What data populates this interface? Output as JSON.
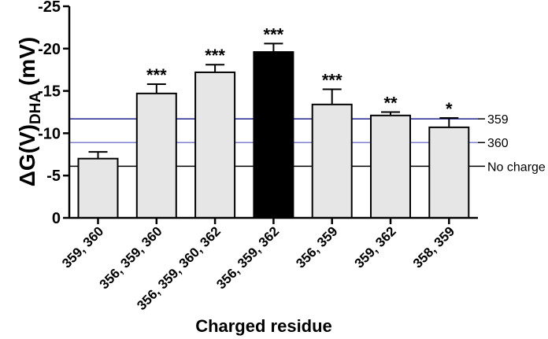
{
  "chart_data": {
    "type": "bar",
    "title": "",
    "xlabel": "Charged residue",
    "ylabel": {
      "main": "ΔG(V)",
      "subscript": "DHA",
      "unit": " (mV)"
    },
    "ylim": [
      0,
      -25
    ],
    "yticks": [
      0,
      -5,
      -10,
      -15,
      -20,
      -25
    ],
    "ytick_labels": [
      "0",
      "-5",
      "-10",
      "-15",
      "-20",
      "-25"
    ],
    "categories": [
      "359, 360",
      "356, 359, 360",
      "356, 359, 360, 362",
      "356, 359, 362",
      "356, 359",
      "359, 362",
      "358, 359"
    ],
    "values": [
      -7.0,
      -14.7,
      -17.2,
      -19.6,
      -13.4,
      -12.1,
      -10.7
    ],
    "errors": [
      0.8,
      1.1,
      0.9,
      1.0,
      1.8,
      0.4,
      1.1
    ],
    "significance": [
      "",
      "***",
      "***",
      "***",
      "***",
      "**",
      "*"
    ],
    "bar_colors": [
      "#e6e6e6",
      "#e6e6e6",
      "#e6e6e6",
      "#000000",
      "#e6e6e6",
      "#e6e6e6",
      "#e6e6e6"
    ],
    "reference_lines": [
      {
        "label": "359",
        "value": -11.7,
        "color": "#1f1f8c"
      },
      {
        "label": "360",
        "value": -8.9,
        "color": "#8080d0"
      },
      {
        "label": "No charge",
        "value": -6.1,
        "color": "#000000"
      }
    ],
    "grid": false,
    "legend": "none"
  }
}
